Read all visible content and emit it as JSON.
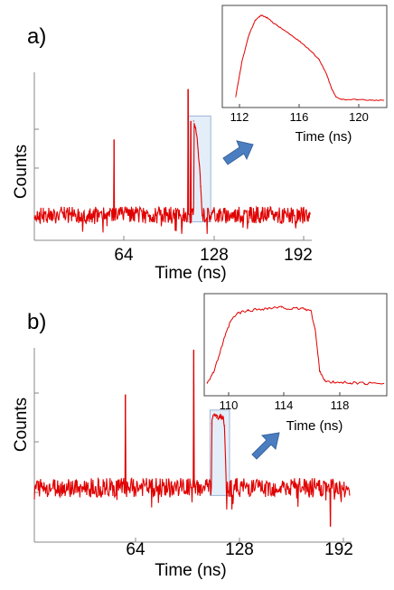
{
  "colors": {
    "trace": "#e00000",
    "axis": "#888888",
    "highlight_fill": "#dbe9f7",
    "highlight_stroke": "#7f9ec8",
    "arrow": "#4a7ec0"
  },
  "chart_data": [
    {
      "panel": "a)",
      "type": "line",
      "xlabel": "Time (ns)",
      "ylabel": "Counts",
      "xticks": [
        "64",
        "128",
        "192"
      ],
      "xlim": [
        0,
        195
      ],
      "ylim": [
        0,
        100
      ],
      "baseline": 15,
      "noise_amplitude": 5,
      "peaks": [
        {
          "x": 56,
          "y": 60
        },
        {
          "x": 108,
          "y": 90
        },
        {
          "x": 110,
          "y": 71
        }
      ],
      "series": [
        {
          "x": [
            112,
            113,
            114,
            115,
            116,
            117,
            118
          ],
          "values": [
            71,
            68,
            63,
            55,
            45,
            32,
            15
          ]
        }
      ],
      "highlight_xrange": [
        108,
        124
      ],
      "inset": {
        "xlabel": "Time (ns)",
        "xticks": [
          "112",
          "116",
          "120"
        ],
        "xlim": [
          110,
          121
        ],
        "ylim": [
          0,
          1.05
        ],
        "series": [
          {
            "x": [
              110.9,
              111.3,
              111.8,
              112.2,
              112.6,
              113.0,
              113.5,
              114.0,
              114.5,
              115.0,
              115.5,
              116.0,
              116.5,
              117.0,
              117.3,
              117.6,
              118.0,
              119.0,
              120.0,
              120.8
            ],
            "values": [
              0.05,
              0.45,
              0.78,
              0.94,
              1.0,
              0.97,
              0.9,
              0.84,
              0.78,
              0.72,
              0.65,
              0.57,
              0.48,
              0.3,
              0.15,
              0.05,
              0.02,
              0.02,
              0.01,
              0.01
            ]
          }
        ]
      }
    },
    {
      "panel": "b)",
      "type": "line",
      "xlabel": "Time (ns)",
      "ylabel": "Counts",
      "xticks": [
        "64",
        "128",
        "192"
      ],
      "xlim": [
        0,
        195
      ],
      "ylim": [
        0,
        100
      ],
      "baseline": 28,
      "noise_amplitude": 5,
      "peaks": [
        {
          "x": 56,
          "y": 76
        },
        {
          "x": 98,
          "y": 99
        },
        {
          "x": 182,
          "y": 8
        }
      ],
      "series": [
        {
          "x": [
            109,
            110,
            112,
            114,
            116,
            117,
            118
          ],
          "values": [
            61,
            65,
            64,
            65,
            64,
            60,
            28
          ]
        }
      ],
      "highlight_xrange": [
        108,
        120
      ],
      "inset": {
        "xlabel": "Time (ns)",
        "xticks": [
          "110",
          "114",
          "118"
        ],
        "xlim": [
          108.5,
          121
        ],
        "ylim": [
          0,
          1.05
        ],
        "series": [
          {
            "x": [
              108.7,
              109.2,
              109.8,
              110.3,
              110.8,
              111.5,
              112.3,
              113.0,
              113.8,
              114.5,
              115.2,
              115.8,
              116.1,
              116.4,
              116.8,
              117.5,
              118.5,
              119.5,
              120.8
            ],
            "values": [
              0.05,
              0.2,
              0.55,
              0.8,
              0.9,
              0.93,
              0.95,
              0.96,
              0.97,
              0.95,
              0.96,
              0.93,
              0.7,
              0.2,
              0.06,
              0.05,
              0.05,
              0.04,
              0.04
            ]
          }
        ]
      }
    }
  ]
}
